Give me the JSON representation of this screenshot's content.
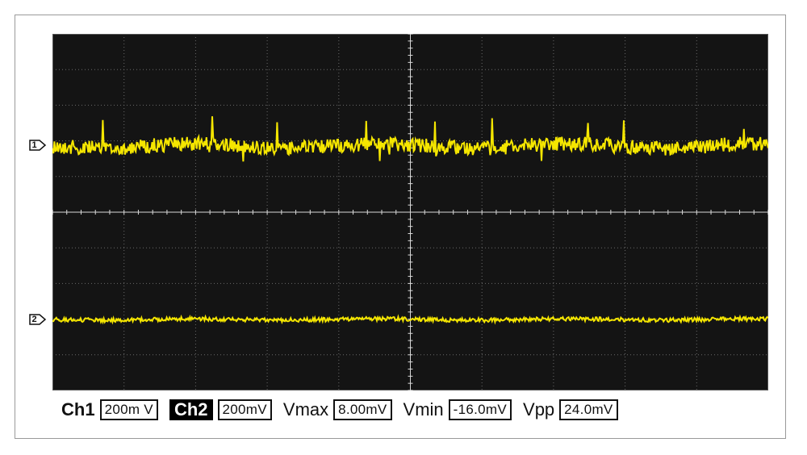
{
  "channels": {
    "ch1": {
      "label": "Ch1",
      "scale": "200m V",
      "marker": "1"
    },
    "ch2": {
      "label": "Ch2",
      "scale": "200mV",
      "marker": "2"
    }
  },
  "measurements": {
    "vmax": {
      "label": "Vmax",
      "value": "8.00mV"
    },
    "vmin": {
      "label": "Vmin",
      "value": "-16.0mV"
    },
    "vpp": {
      "label": "Vpp",
      "value": "24.0mV"
    }
  },
  "colors": {
    "trace": "#f5e600",
    "screen": "#141414",
    "grid": "#6a6a6a",
    "axis": "#d8d8d8"
  }
}
